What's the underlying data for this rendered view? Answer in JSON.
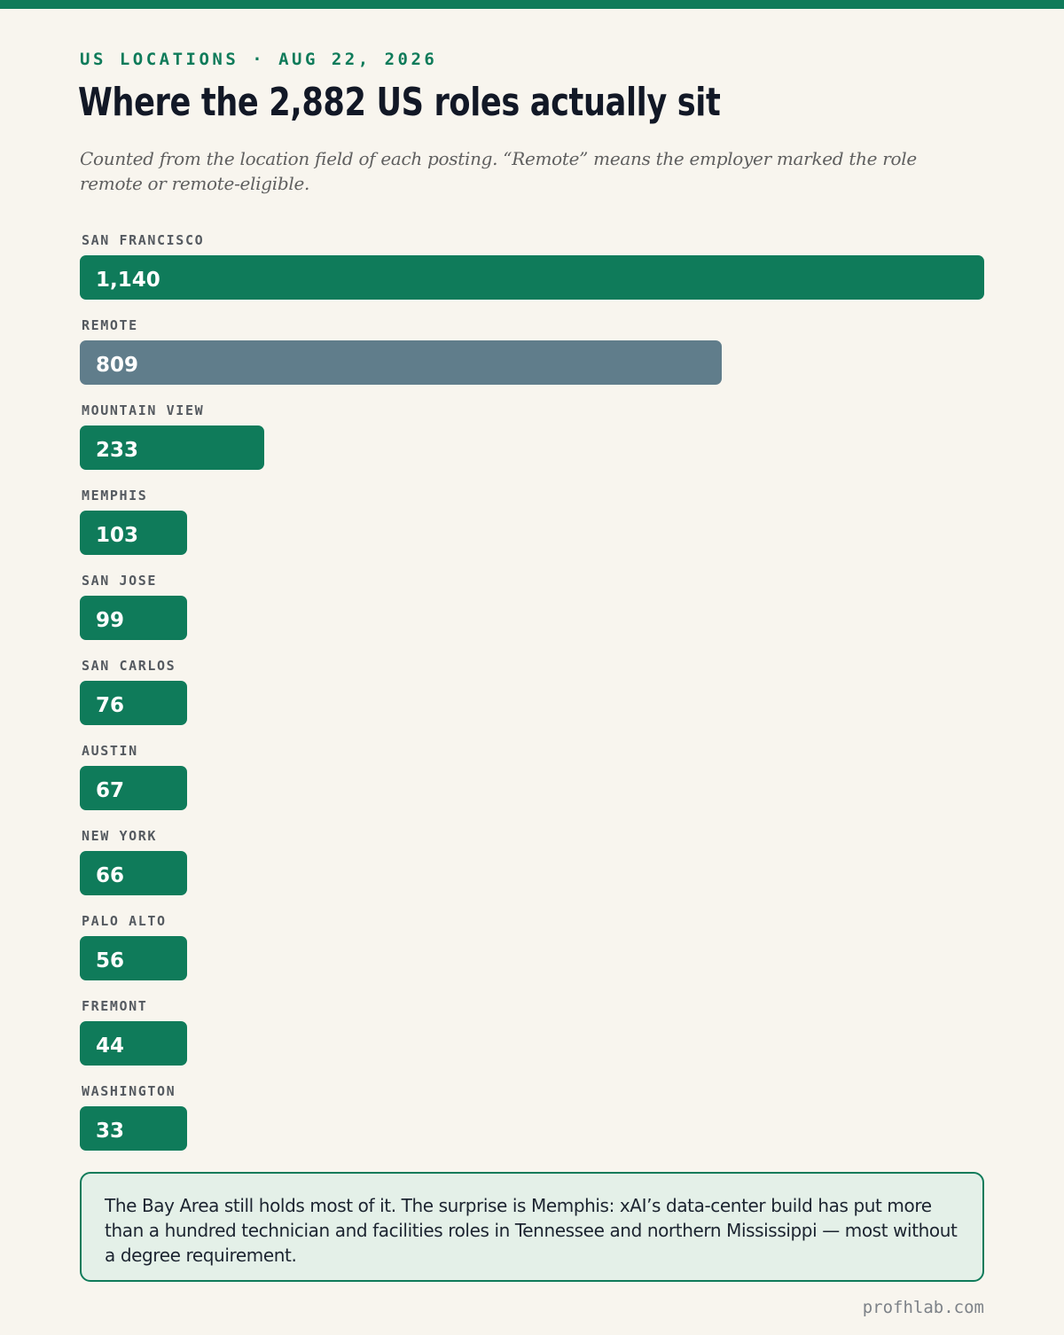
{
  "header": {
    "kicker": "US LOCATIONS · AUG 22, 2026",
    "title": "Where the 2,882 US roles actually sit",
    "subtitle": "Counted from the location field of each posting. “Remote” means the employer marked the role remote or remote-eligible."
  },
  "colors": {
    "accent": "#0f7b5a",
    "remote": "#607d8b"
  },
  "chart_data": {
    "type": "bar",
    "orientation": "horizontal",
    "categories": [
      "SAN FRANCISCO",
      "REMOTE",
      "MOUNTAIN VIEW",
      "MEMPHIS",
      "SAN JOSE",
      "SAN CARLOS",
      "AUSTIN",
      "NEW YORK",
      "PALO ALTO",
      "FREMONT",
      "WASHINGTON"
    ],
    "values": [
      1140,
      809,
      233,
      103,
      99,
      76,
      67,
      66,
      56,
      44,
      33
    ],
    "value_labels": [
      "1,140",
      "809",
      "233",
      "103",
      "99",
      "76",
      "67",
      "66",
      "56",
      "44",
      "33"
    ],
    "highlight_category": "REMOTE",
    "xlim": [
      0,
      1140
    ]
  },
  "note": {
    "text": "The Bay Area still holds most of it. The surprise is Memphis: xAI’s data-center build has put more than a hundred technician and facilities roles in Tennessee and northern Mississippi — most without a degree requirement."
  },
  "footer": {
    "site": "profhlab.com"
  }
}
